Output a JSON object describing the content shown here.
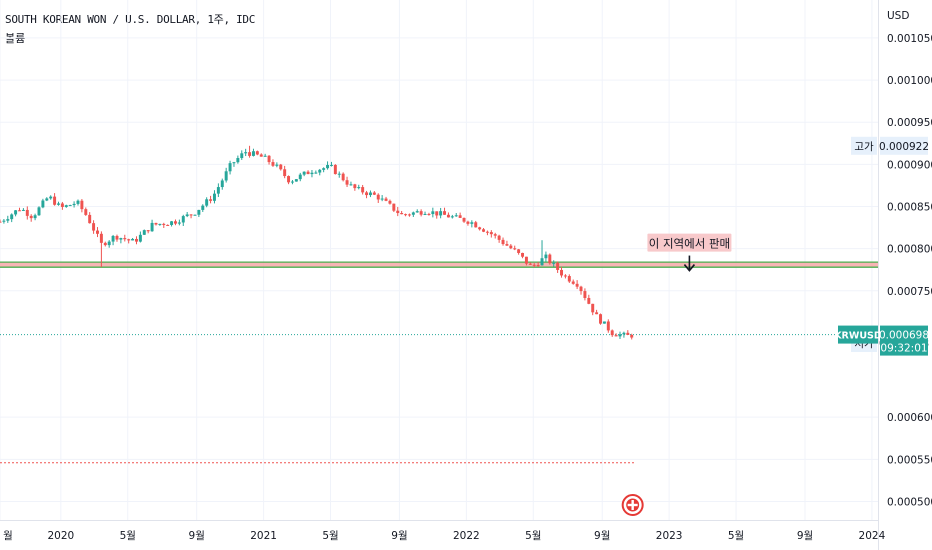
{
  "header": {
    "title": "SOUTH KOREAN WON / U.S. DOLLAR, 1주, IDC",
    "subtitle": "볼륨"
  },
  "colors": {
    "up": "#26a69a",
    "down": "#ef5350",
    "grid": "#f0f3fa",
    "axis_text": "#131722",
    "price_line": "#26a69a",
    "zone_line": "#4caf50",
    "zone_fill": "#f5a3a3",
    "annotation_bg": "#f8c9cb",
    "low_line": "#ef5350"
  },
  "chart_data": {
    "type": "candlestick",
    "symbol": "KRWUSD",
    "currency_label": "USD",
    "ylim": [
      0.000478,
      0.001095
    ],
    "y_ticks": [
      "0.001050",
      "0.001000",
      "0.000950",
      "0.000900",
      "0.000850",
      "0.000800",
      "0.000750",
      "0.000600",
      "0.000550",
      "0.000500"
    ],
    "x_ticks": [
      {
        "label": "월",
        "t": 2019.7
      },
      {
        "label": "2020",
        "t": 2020.0
      },
      {
        "label": "5월",
        "t": 2020.33
      },
      {
        "label": "9월",
        "t": 2020.67
      },
      {
        "label": "2021",
        "t": 2021.0
      },
      {
        "label": "5월",
        "t": 2021.33
      },
      {
        "label": "9월",
        "t": 2021.67
      },
      {
        "label": "2022",
        "t": 2022.0
      },
      {
        "label": "5월",
        "t": 2022.33
      },
      {
        "label": "9월",
        "t": 2022.67
      },
      {
        "label": "2023",
        "t": 2023.0
      },
      {
        "label": "5월",
        "t": 2023.33
      },
      {
        "label": "9월",
        "t": 2023.67
      },
      {
        "label": "2024",
        "t": 2024.0
      }
    ],
    "x_range": [
      2019.7,
      2024.03
    ],
    "candle_range": [
      2019.7,
      2022.83
    ],
    "anchors": [
      [
        2019.7,
        0.000832
      ],
      [
        2019.8,
        0.000848
      ],
      [
        2019.86,
        0.000838
      ],
      [
        2019.94,
        0.000862
      ],
      [
        2020.0,
        0.000848
      ],
      [
        2020.08,
        0.000855
      ],
      [
        2020.13,
        0.000838
      ],
      [
        2020.2,
        0.000805
      ],
      [
        2020.27,
        0.000815
      ],
      [
        2020.36,
        0.000808
      ],
      [
        2020.45,
        0.000828
      ],
      [
        2020.56,
        0.000832
      ],
      [
        2020.66,
        0.000843
      ],
      [
        2020.75,
        0.000862
      ],
      [
        2020.84,
        0.0009
      ],
      [
        2020.91,
        0.000915
      ],
      [
        2021.0,
        0.000908
      ],
      [
        2021.06,
        0.000898
      ],
      [
        2021.13,
        0.00088
      ],
      [
        2021.24,
        0.000893
      ],
      [
        2021.33,
        0.000897
      ],
      [
        2021.44,
        0.000872
      ],
      [
        2021.56,
        0.000862
      ],
      [
        2021.68,
        0.00084
      ],
      [
        2021.8,
        0.000845
      ],
      [
        2021.92,
        0.000838
      ],
      [
        2022.02,
        0.000832
      ],
      [
        2022.12,
        0.000818
      ],
      [
        2022.25,
        0.000795
      ],
      [
        2022.32,
        0.000778
      ],
      [
        2022.39,
        0.00079
      ],
      [
        2022.48,
        0.000768
      ],
      [
        2022.55,
        0.000758
      ],
      [
        2022.64,
        0.00072
      ],
      [
        2022.72,
        0.0007
      ],
      [
        2022.79,
        0.000696
      ],
      [
        2022.83,
        0.000698
      ]
    ],
    "big_wicks": [
      {
        "t": 2020.2,
        "low": 0.000778
      },
      {
        "t": 2020.93,
        "high": 0.000922
      },
      {
        "t": 2022.37,
        "high": 0.00081
      }
    ],
    "last_price": "0.000698",
    "last_price_value": 0.000698,
    "countdown": "09:32:01",
    "high_label": "고가",
    "high_value": "0.000922",
    "high_price_value": 0.000922,
    "low_label": "저가",
    "low_value": "0.000688",
    "low_price_value": 0.000688,
    "zone_top": 0.000784,
    "zone_bottom": 0.000778,
    "dashed_level": 0.000546,
    "annotation_text": "이 지역에서 판매",
    "annotation_t": 2023.1,
    "annotation_price": 0.000806
  }
}
